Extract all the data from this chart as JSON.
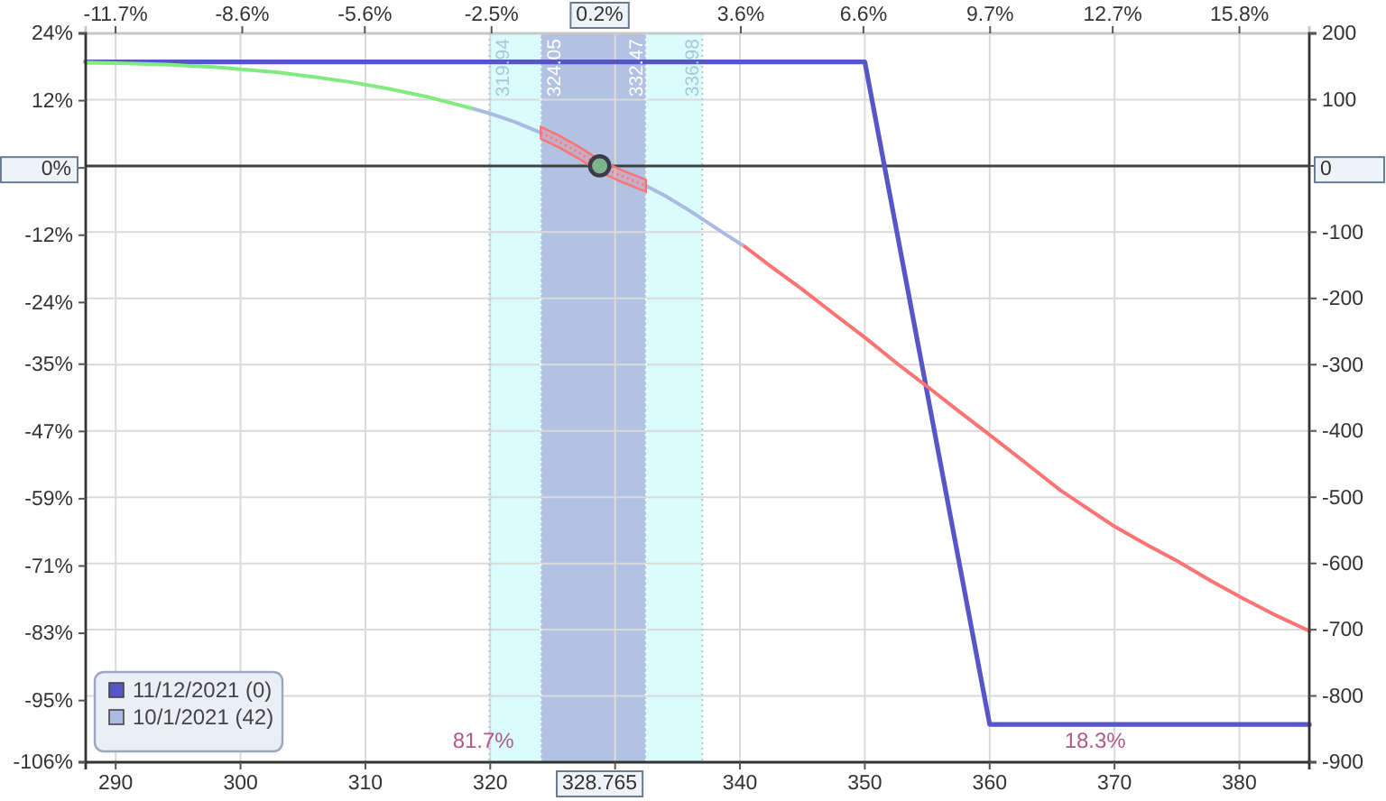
{
  "chart_data": {
    "type": "line",
    "xlim": [
      287.6,
      385.6
    ],
    "xticks": [
      290,
      300,
      310,
      320,
      {
        "value": 330,
        "label": null
      },
      340,
      350,
      360,
      370,
      380
    ],
    "x2lim": [
      -12.43,
      17.51
    ],
    "x2ticks": [
      {
        "value": -11.7,
        "label": "-11.7%"
      },
      {
        "value": -8.6,
        "label": "-8.6%"
      },
      {
        "value": -5.6,
        "label": "-5.6%"
      },
      {
        "value": -2.5,
        "label": "-2.5%"
      },
      {
        "value": 3.6,
        "label": "3.6%"
      },
      {
        "value": 6.6,
        "label": "6.6%"
      },
      {
        "value": 9.7,
        "label": "9.7%"
      },
      {
        "value": 12.7,
        "label": "12.7%"
      },
      {
        "value": 15.8,
        "label": "15.8%"
      }
    ],
    "ylim": [
      -106,
      24
    ],
    "yticks": [
      {
        "value": 24,
        "label": "24%"
      },
      {
        "value": 12,
        "label": "12%"
      },
      {
        "value": 0,
        "label": null
      },
      {
        "value": -12,
        "label": "-12%"
      },
      {
        "value": -24,
        "label": "-24%"
      },
      {
        "value": -35,
        "label": "-35%"
      },
      {
        "value": -47,
        "label": "-47%"
      },
      {
        "value": -59,
        "label": "-59%"
      },
      {
        "value": -71,
        "label": "-71%"
      },
      {
        "value": -83,
        "label": "-83%"
      },
      {
        "value": -95,
        "label": "-95%"
      },
      {
        "value": -106,
        "label": "-106%"
      }
    ],
    "y2lim": [
      -900,
      200
    ],
    "y2ticks": [
      200,
      100,
      {
        "value": 0,
        "label": null
      },
      -100,
      -200,
      -300,
      -400,
      -500,
      -600,
      -700,
      -800,
      -900
    ],
    "grid": true,
    "legend": "bottom left",
    "series": [
      {
        "name": "11/12/2021 (0)",
        "color": "#5656c8",
        "axis": "y2",
        "x": [
          287.6,
          350,
          360,
          385.6
        ],
        "values": [
          157,
          157,
          -843,
          -843
        ]
      },
      {
        "name": "10/1/2021 (42)",
        "color": "#a9bbe3",
        "axis": "y2",
        "x": [
          318.5,
          320,
          322,
          324.05,
          328.765,
          332.47,
          334,
          336,
          338.74,
          340.4
        ],
        "values": [
          87,
          79,
          66,
          50,
          null,
          -30,
          -45,
          -68,
          -102,
          -122
        ]
      },
      {
        "color": "#80ec80",
        "axis": "y2",
        "x": [
          287.6,
          290,
          294,
          298,
          300,
          303,
          306,
          309,
          312,
          315,
          318.5
        ],
        "values": [
          156,
          155,
          153,
          149,
          146,
          141,
          134,
          126,
          116,
          104,
          87
        ]
      },
      {
        "color": "#ff7373",
        "axis": "y2",
        "line_style": "dotted",
        "x": [
          324.05,
          325.5,
          327,
          328.765,
          330.5,
          332.47
        ],
        "values": [
          50,
          37,
          21,
          0,
          -15,
          -30
        ],
        "lower": [
          41,
          28,
          12,
          -9,
          -24,
          -39
        ],
        "upper": [
          59,
          46,
          30,
          9,
          -6,
          -21
        ]
      },
      {
        "color": "#ff7373",
        "axis": "y2",
        "x": [
          340.4,
          342.5,
          344.9,
          347.5,
          350,
          352.7,
          355,
          357.5,
          360,
          363,
          365.7,
          369.9,
          372.5,
          375.1,
          377.7,
          380.3,
          383,
          385.6
        ],
        "values": [
          -122,
          -152,
          -185,
          -223,
          -259,
          -300,
          -333,
          -370,
          -406,
          -450,
          -490,
          -543,
          -571,
          -597,
          -626,
          -653,
          -679,
          -702
        ]
      },
      {
        "type": "scatter",
        "marker": "circle",
        "color": "#3a3a4a",
        "axis": "y2",
        "x": [
          328.765
        ],
        "values": [
          0
        ]
      }
    ],
    "bands": [
      {
        "axis": "x",
        "from": 319.94,
        "to": 336.98,
        "color": "#dafcfc"
      },
      {
        "axis": "x",
        "from": 324.05,
        "to": 332.47,
        "color": "#b2c2e2"
      }
    ],
    "ref_lines": [
      {
        "axis": "x",
        "value": 319.94,
        "label": "319.94",
        "color": "#a8c8d8",
        "line_style": "dotted"
      },
      {
        "axis": "x",
        "value": 324.05,
        "label": "324.05",
        "color": "#ffffff",
        "line_style": "dotted"
      },
      {
        "axis": "x",
        "value": 332.47,
        "label": "332.47",
        "color": "#ffffff",
        "line_style": "dotted"
      },
      {
        "axis": "x",
        "value": 336.98,
        "label": "336.98",
        "color": "#a8c8d8",
        "line_style": "dotted"
      },
      {
        "axis": "y2",
        "value": 0,
        "color": "#404040",
        "line_style": "solid"
      }
    ],
    "annotations": [
      {
        "text": "328.765",
        "x": 328.765,
        "y": -106
      },
      {
        "text": "0.2%",
        "x": 328.765,
        "y": 24
      },
      {
        "text": "0%",
        "x": 287.6,
        "y": 0
      },
      {
        "text": "0",
        "x": 385.6,
        "y": 0
      },
      "81.7%",
      "18.3%"
    ]
  }
}
